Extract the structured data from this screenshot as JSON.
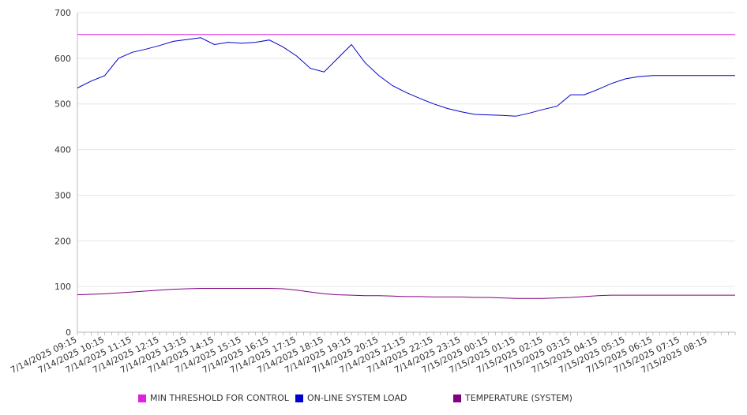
{
  "chart_data": {
    "type": "line",
    "yticks": [
      "0",
      "100",
      "200",
      "300",
      "400",
      "500",
      "600",
      "700"
    ],
    "ylim": [
      0,
      700
    ],
    "grid": true,
    "legend_position": "bottom",
    "xticks": [
      "7/14/2025 09:15",
      "7/14/2025 10:15",
      "7/14/2025 11:15",
      "7/14/2025 12:15",
      "7/14/2025 13:15",
      "7/14/2025 14:15",
      "7/14/2025 15:15",
      "7/14/2025 16:15",
      "7/14/2025 17:15",
      "7/14/2025 18:15",
      "7/14/2025 19:15",
      "7/14/2025 20:15",
      "7/14/2025 21:15",
      "7/14/2025 22:15",
      "7/14/2025 23:15",
      "7/15/2025 00:15",
      "7/15/2025 01:15",
      "7/15/2025 02:15",
      "7/15/2025 03:15",
      "7/15/2025 04:15",
      "7/15/2025 05:15",
      "7/15/2025 06:15",
      "7/15/2025 07:15",
      "7/15/2025 08:15"
    ],
    "x_hours": [
      0,
      0.5,
      1,
      1.5,
      2,
      2.5,
      3,
      3.5,
      4,
      4.5,
      5,
      5.5,
      6,
      6.5,
      7,
      7.5,
      8,
      8.5,
      9,
      9.5,
      10,
      10.5,
      11,
      11.5,
      12,
      12.5,
      13,
      13.5,
      14,
      14.5,
      15,
      15.5,
      16,
      16.5,
      17,
      17.5,
      18,
      18.5,
      19,
      19.5,
      20,
      20.5,
      21,
      21.5,
      22,
      22.5,
      23,
      23.5,
      24
    ],
    "series": [
      {
        "name": "MIN THRESHOLD FOR CONTROL",
        "color": "#e020e0",
        "values": [
          652,
          652,
          652,
          652,
          652,
          652,
          652,
          652,
          652,
          652,
          652,
          652,
          652,
          652,
          652,
          652,
          652,
          652,
          652,
          652,
          652,
          652,
          652,
          652,
          652,
          652,
          652,
          652,
          652,
          652,
          652,
          652,
          652,
          652,
          652,
          652,
          652,
          652,
          652,
          652,
          652,
          652,
          652,
          652,
          652,
          652,
          652,
          652,
          652
        ]
      },
      {
        "name": "ON-LINE SYSTEM LOAD",
        "color": "#0000cc",
        "values": [
          535,
          550,
          562,
          600,
          613,
          620,
          628,
          637,
          641,
          645,
          630,
          635,
          633,
          635,
          640,
          625,
          605,
          578,
          570,
          600,
          630,
          590,
          562,
          540,
          525,
          512,
          500,
          490,
          483,
          477,
          476,
          475,
          473,
          480,
          488,
          495,
          520,
          520,
          532,
          545,
          555,
          560,
          562,
          562,
          562,
          562,
          562,
          562,
          562
        ]
      },
      {
        "name": "TEMPERATURE (SYSTEM)",
        "color": "#800080",
        "values": [
          82,
          83,
          84,
          86,
          88,
          90,
          92,
          94,
          95,
          96,
          96,
          96,
          96,
          96,
          96,
          95,
          92,
          88,
          84,
          82,
          81,
          80,
          80,
          79,
          78,
          78,
          77,
          77,
          77,
          76,
          76,
          75,
          74,
          74,
          74,
          75,
          76,
          78,
          80,
          81,
          81,
          81,
          81,
          81,
          81,
          81,
          81,
          81,
          81
        ]
      }
    ]
  }
}
